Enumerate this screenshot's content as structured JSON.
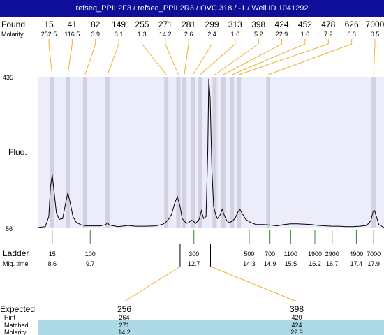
{
  "title": "refseq_PPIL2F3 / refseq_PPIL2R3 / OVC 318 / -1 / Well ID 1041292",
  "labels": {
    "found": "Found",
    "molarity": "Molarity",
    "fluo": "Fluo.",
    "ladder": "Ladder",
    "mig_time": "Mig. time",
    "expected": "Expected",
    "hint": "Hint",
    "matched": "Matched",
    "molarity2": "Molarity"
  },
  "colors": {
    "title_bg": "#0e0e9a",
    "plot_bg": "#ececfa",
    "peak_band": "#c8c8d8",
    "found_line": "#f0b030",
    "ladder_line": "#2e8b2e",
    "matched_bg": "#add8e6"
  },
  "chart_data": {
    "type": "line",
    "ylabel": "Fluo.",
    "y_ticks": [
      "435",
      "56"
    ],
    "ylim": [
      56,
      435
    ],
    "xlim": [
      8.2,
      18.2
    ],
    "found_peaks": [
      {
        "size": "15",
        "molarity": "252.5",
        "time": 8.6
      },
      {
        "size": "41",
        "molarity": "116.5",
        "time": 9.05
      },
      {
        "size": "82",
        "molarity": "3.9",
        "time": 9.55
      },
      {
        "size": "149",
        "molarity": "3.1",
        "time": 10.2
      },
      {
        "size": "255",
        "molarity": "1.3",
        "time": 11.9
      },
      {
        "size": "271",
        "molarity": "14.2",
        "time": 12.25
      },
      {
        "size": "281",
        "molarity": "2.6",
        "time": 12.42
      },
      {
        "size": "299",
        "molarity": "2.4",
        "time": 12.67
      },
      {
        "size": "313",
        "molarity": "1.6",
        "time": 12.88
      },
      {
        "size": "398",
        "molarity": "5.2",
        "time": 13.3
      },
      {
        "size": "424",
        "molarity": "22.9",
        "time": 13.55
      },
      {
        "size": "452",
        "molarity": "1.6",
        "time": 13.8
      },
      {
        "size": "478",
        "molarity": "7.2",
        "time": 14.0
      },
      {
        "size": "626",
        "molarity": "6.3",
        "time": 14.85
      },
      {
        "size": "7000",
        "molarity": "0.5",
        "time": 17.9
      }
    ],
    "ladder": [
      {
        "size": "15",
        "time": "8.6",
        "t": 8.6
      },
      {
        "size": "100",
        "time": "9.7",
        "t": 9.7
      },
      {
        "size": "300",
        "time": "12.7",
        "t": 12.7
      },
      {
        "size": "500",
        "time": "14.3",
        "t": 14.3
      },
      {
        "size": "700",
        "time": "14.9",
        "t": 14.9
      },
      {
        "size": "1100",
        "time": "15.5",
        "t": 15.5
      },
      {
        "size": "1900",
        "time": "16.2",
        "t": 16.2
      },
      {
        "size": "2900",
        "time": "16.7",
        "t": 16.7
      },
      {
        "size": "4900",
        "time": "17.4",
        "t": 17.4
      },
      {
        "size": "7000",
        "time": "17.9",
        "t": 17.9
      }
    ],
    "trace": [
      [
        8.2,
        58
      ],
      [
        8.4,
        60
      ],
      [
        8.5,
        85
      ],
      [
        8.55,
        160
      ],
      [
        8.6,
        190
      ],
      [
        8.65,
        150
      ],
      [
        8.72,
        95
      ],
      [
        8.8,
        78
      ],
      [
        8.9,
        80
      ],
      [
        8.98,
        115
      ],
      [
        9.05,
        145
      ],
      [
        9.12,
        120
      ],
      [
        9.2,
        85
      ],
      [
        9.3,
        70
      ],
      [
        9.45,
        64
      ],
      [
        9.6,
        62
      ],
      [
        9.8,
        62
      ],
      [
        10.0,
        62
      ],
      [
        10.15,
        65
      ],
      [
        10.2,
        70
      ],
      [
        10.25,
        64
      ],
      [
        10.5,
        60
      ],
      [
        10.7,
        62
      ],
      [
        10.8,
        63
      ],
      [
        11.0,
        61
      ],
      [
        11.3,
        61
      ],
      [
        11.6,
        62
      ],
      [
        11.8,
        66
      ],
      [
        11.9,
        72
      ],
      [
        11.98,
        80
      ],
      [
        12.05,
        90
      ],
      [
        12.15,
        120
      ],
      [
        12.22,
        135
      ],
      [
        12.3,
        110
      ],
      [
        12.36,
        80
      ],
      [
        12.42,
        74
      ],
      [
        12.48,
        68
      ],
      [
        12.55,
        70
      ],
      [
        12.62,
        76
      ],
      [
        12.68,
        74
      ],
      [
        12.75,
        68
      ],
      [
        12.85,
        78
      ],
      [
        12.92,
        100
      ],
      [
        12.98,
        80
      ],
      [
        13.05,
        85
      ],
      [
        13.1,
        250
      ],
      [
        13.13,
        430
      ],
      [
        13.17,
        380
      ],
      [
        13.22,
        200
      ],
      [
        13.27,
        110
      ],
      [
        13.33,
        90
      ],
      [
        13.38,
        80
      ],
      [
        13.45,
        88
      ],
      [
        13.52,
        103
      ],
      [
        13.58,
        88
      ],
      [
        13.65,
        75
      ],
      [
        13.72,
        70
      ],
      [
        13.82,
        74
      ],
      [
        13.9,
        82
      ],
      [
        13.97,
        96
      ],
      [
        14.03,
        103
      ],
      [
        14.1,
        92
      ],
      [
        14.2,
        78
      ],
      [
        14.35,
        70
      ],
      [
        14.5,
        65
      ],
      [
        14.7,
        65
      ],
      [
        14.9,
        64
      ],
      [
        15.1,
        62
      ],
      [
        15.3,
        65
      ],
      [
        15.5,
        67
      ],
      [
        15.7,
        67
      ],
      [
        15.9,
        66
      ],
      [
        16.1,
        65
      ],
      [
        16.3,
        63
      ],
      [
        16.5,
        62
      ],
      [
        16.7,
        61
      ],
      [
        16.9,
        61
      ],
      [
        17.1,
        60
      ],
      [
        17.3,
        60
      ],
      [
        17.5,
        61
      ],
      [
        17.7,
        63
      ],
      [
        17.82,
        75
      ],
      [
        17.88,
        97
      ],
      [
        17.93,
        100
      ],
      [
        17.98,
        85
      ],
      [
        18.05,
        65
      ],
      [
        18.2,
        58
      ]
    ],
    "expected": [
      {
        "expected": "256",
        "hint": "264",
        "matched": "271",
        "molarity": "14.2",
        "time": 12.3
      },
      {
        "expected": "398",
        "hint": "420",
        "matched": "424",
        "molarity": "22.9",
        "time": 13.18
      }
    ]
  }
}
